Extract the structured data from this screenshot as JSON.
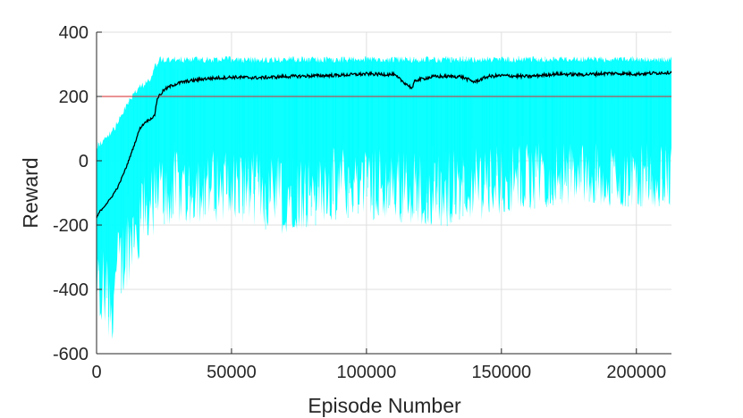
{
  "chart_data": {
    "type": "line",
    "title": "",
    "xlabel": "Episode Number",
    "ylabel": "Reward",
    "xlim": [
      0,
      213000
    ],
    "ylim": [
      -600,
      400
    ],
    "xticks": [
      0,
      50000,
      100000,
      150000,
      200000
    ],
    "xtick_labels": [
      "0",
      "50000",
      "100000",
      "150000",
      "200000"
    ],
    "yticks": [
      -600,
      -400,
      -200,
      0,
      200,
      400
    ],
    "ytick_labels": [
      "-600",
      "-400",
      "-200",
      "0",
      "200",
      "400"
    ],
    "grid": true,
    "legend": "none",
    "colors": {
      "episode_band": "#00FFFF",
      "average": "#000000",
      "threshold": "#D62728",
      "grid": "#DFDFDF",
      "axis": "#262626"
    },
    "threshold": {
      "y": 200
    },
    "series": [
      {
        "kind": "episode_reward_band",
        "x": [
          0,
          2000,
          5000,
          8000,
          12000,
          16000,
          20000,
          21500,
          23000,
          30000,
          50000,
          70000,
          90000,
          110000,
          130000,
          150000,
          170000,
          190000,
          213000
        ],
        "upper": [
          60,
          70,
          95,
          130,
          200,
          240,
          260,
          300,
          325,
          325,
          325,
          325,
          325,
          325,
          325,
          325,
          325,
          325,
          325
        ],
        "lower": [
          -560,
          -520,
          -590,
          -480,
          -380,
          -300,
          -250,
          -240,
          -230,
          -200,
          -190,
          -230,
          -180,
          -190,
          -210,
          -170,
          -140,
          -150,
          -150
        ]
      },
      {
        "kind": "average_reward",
        "x": [
          0,
          1000,
          3000,
          5000,
          8000,
          11000,
          14000,
          16000,
          18000,
          20000,
          21500,
          22500,
          25000,
          28000,
          32000,
          36000,
          40000,
          50000,
          60000,
          70000,
          80000,
          90000,
          100000,
          110000,
          117000,
          118000,
          125000,
          135000,
          140000,
          145000,
          150000,
          160000,
          170000,
          180000,
          190000,
          200000,
          213000
        ],
        "y": [
          -180,
          -160,
          -140,
          -120,
          -80,
          -20,
          50,
          100,
          120,
          130,
          140,
          195,
          220,
          235,
          245,
          250,
          255,
          260,
          258,
          262,
          264,
          266,
          270,
          268,
          225,
          250,
          262,
          262,
          245,
          262,
          265,
          262,
          270,
          268,
          272,
          270,
          275
        ]
      }
    ]
  }
}
